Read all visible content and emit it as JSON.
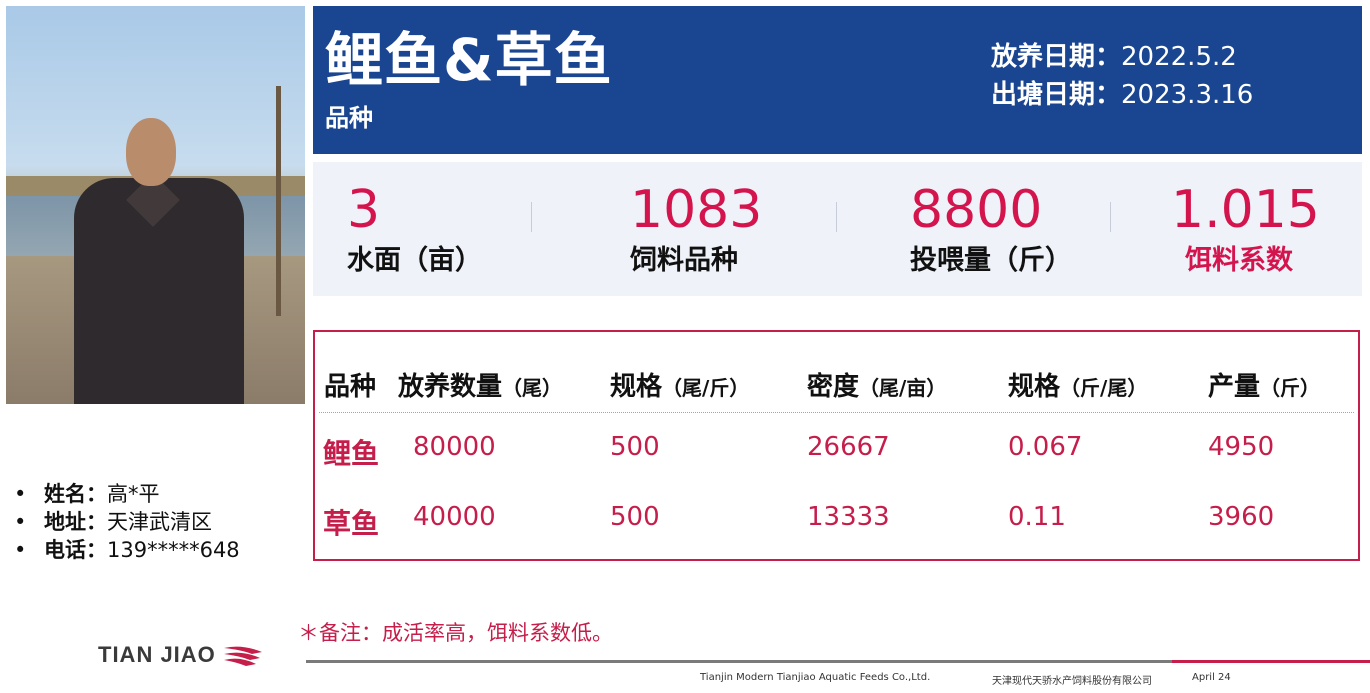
{
  "profile": {
    "name_label": "姓名：",
    "name_value": "高*平",
    "address_label": "地址：",
    "address_value": "天津武清区",
    "phone_label": "电话：",
    "phone_value": "139*****648"
  },
  "header": {
    "title": "鲤鱼&草鱼",
    "subtitle": "品种",
    "stock_date_label": "放养日期：",
    "stock_date_value": "2022.5.2",
    "harvest_date_label": "出塘日期：",
    "harvest_date_value": "2023.3.16"
  },
  "stats": [
    {
      "value": "3",
      "label": "水面（亩）"
    },
    {
      "value": "1083",
      "label": "饲料品种"
    },
    {
      "value": "8800",
      "label": "投喂量（斤）"
    },
    {
      "value": "1.015",
      "label": "饵料系数"
    }
  ],
  "table": {
    "headers": [
      {
        "main": "品种",
        "unit": ""
      },
      {
        "main": "放养数量",
        "unit": "（尾）"
      },
      {
        "main": "规格",
        "unit": "（尾/斤）"
      },
      {
        "main": "密度",
        "unit": "（尾/亩）"
      },
      {
        "main": "规格",
        "unit": "（斤/尾）"
      },
      {
        "main": "产量",
        "unit": "（斤）"
      }
    ],
    "rows": [
      [
        "鲤鱼",
        "80000",
        "500",
        "26667",
        "0.067",
        "4950"
      ],
      [
        "草鱼",
        "40000",
        "500",
        "13333",
        "0.11",
        "3960"
      ]
    ]
  },
  "note": "＊备注：成活率高，饵料系数低。",
  "logo": {
    "text": "TIAN JIAO"
  },
  "footer": {
    "company_en": "Tianjin Modern Tianjiao Aquatic Feeds Co.,Ltd.",
    "company_cn": "天津现代天骄水产饲料股份有限公司",
    "date": "April 24"
  },
  "colors": {
    "header_blue": "#1a4590",
    "accent_red": "#c61e4b",
    "stat_red": "#d3144d",
    "stats_bg": "#eff3f9"
  }
}
